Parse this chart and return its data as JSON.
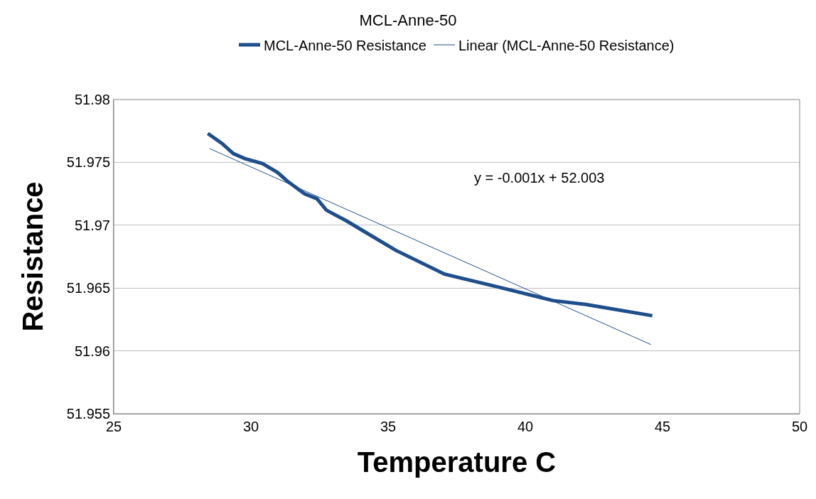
{
  "chart_data": {
    "type": "line",
    "title": "MCL-Anne-50",
    "xlabel": "Temperature C",
    "ylabel": "Resistance",
    "x": [
      28.43,
      28.95,
      29.36,
      29.78,
      30.42,
      30.97,
      31.33,
      31.95,
      32.41,
      32.75,
      33.52,
      34.09,
      35.28,
      37.06,
      38.97,
      41.01,
      42.2,
      44.63
    ],
    "series": [
      {
        "name": "MCL-Anne-50 Resistance",
        "color": "#1f4e8c",
        "values": [
          51.9773,
          51.9765,
          51.9757,
          51.9753,
          51.9749,
          51.9742,
          51.9735,
          51.9725,
          51.9721,
          51.9712,
          51.9703,
          51.96955,
          51.968,
          51.9661,
          51.9651,
          51.964,
          51.9637,
          51.9628
        ]
      },
      {
        "name": "Linear (MCL-Anne-50 Resistance)",
        "color": "#1f4e8c",
        "x": [
          28.49,
          44.58
        ],
        "values": [
          51.9761,
          51.9605
        ]
      }
    ],
    "annotations": [
      "y = -0.001x + 52.003"
    ],
    "xlim": [
      25,
      50
    ],
    "xticks": [
      25,
      30,
      35,
      40,
      45,
      50
    ],
    "ylim": [
      51.955,
      51.98
    ],
    "yticks": [
      51.955,
      51.96,
      51.965,
      51.97,
      51.975,
      51.98
    ],
    "grid": "y",
    "legend": "top",
    "marker": "none",
    "line_style": "solid"
  }
}
